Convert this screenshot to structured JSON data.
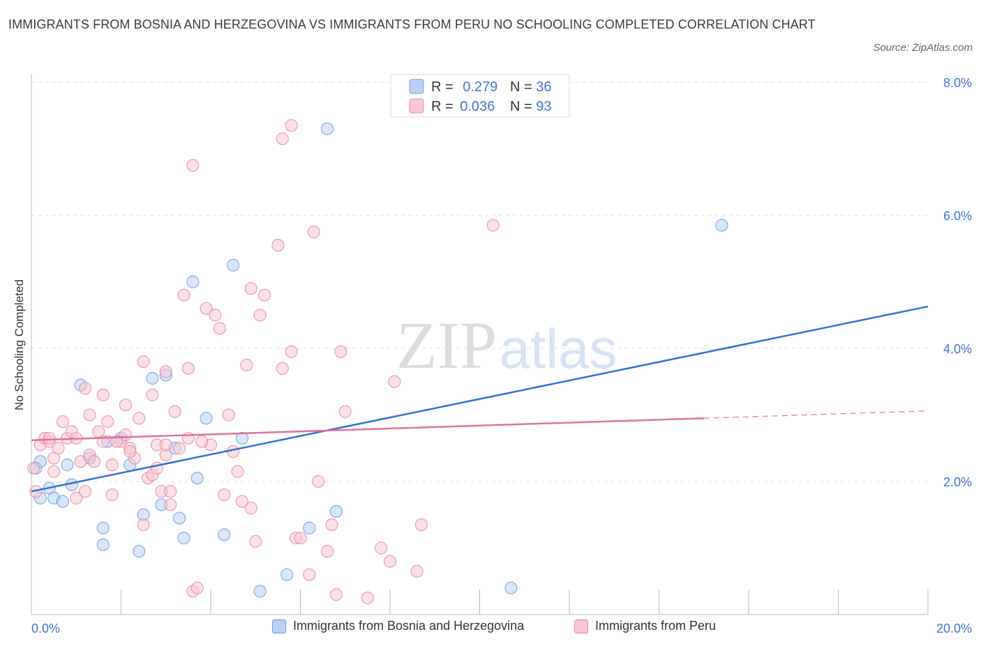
{
  "title": "IMMIGRANTS FROM BOSNIA AND HERZEGOVINA VS IMMIGRANTS FROM PERU NO SCHOOLING COMPLETED CORRELATION CHART",
  "source": "Source: ZipAtlas.com",
  "watermark": {
    "zip": "ZIP",
    "atlas": "atlas"
  },
  "colors": {
    "blue_fill": "#b9d1f5",
    "blue_stroke": "#6f9de0",
    "blue_line": "#2f72d0",
    "pink_fill": "#f8c6d5",
    "pink_stroke": "#e88aa8",
    "pink_line": "#e0709a",
    "accent_text": "#3f75c9"
  },
  "legend": {
    "rows": [
      {
        "r_label": "R = ",
        "r_value": "0.279",
        "n_label": "N = ",
        "n_value": "36"
      },
      {
        "r_label": "R = ",
        "r_value": "0.036",
        "n_label": "N = ",
        "n_value": "93"
      }
    ]
  },
  "bottom_legend": {
    "blue_label": "Immigrants from Bosnia and Herzegovina",
    "pink_label": "Immigrants from Peru"
  },
  "chart_data": {
    "type": "scatter",
    "title": "IMMIGRANTS FROM BOSNIA AND HERZEGOVINA VS IMMIGRANTS FROM PERU NO SCHOOLING COMPLETED CORRELATION CHART",
    "ylabel": "No Schooling Completed",
    "xlabel": "",
    "xlim": [
      0,
      20
    ],
    "ylim": [
      0,
      8
    ],
    "x_tick_labels": [
      "0.0%",
      "20.0%"
    ],
    "y_tick_labels": [
      "2.0%",
      "4.0%",
      "6.0%",
      "8.0%"
    ],
    "y_ticks": [
      2,
      4,
      6,
      8
    ],
    "grid": true,
    "legend_position": "top-center",
    "series": [
      {
        "name": "Immigrants from Bosnia and Herzegovina",
        "color": "#b9d1f5",
        "trend": {
          "x": [
            0,
            20
          ],
          "y": [
            1.85,
            4.63
          ]
        },
        "points": [
          [
            0.1,
            2.2
          ],
          [
            0.2,
            1.75
          ],
          [
            0.4,
            1.9
          ],
          [
            0.5,
            1.75
          ],
          [
            0.7,
            1.7
          ],
          [
            0.8,
            2.25
          ],
          [
            0.9,
            1.95
          ],
          [
            1.1,
            3.45
          ],
          [
            1.3,
            2.35
          ],
          [
            1.6,
            1.3
          ],
          [
            1.6,
            1.05
          ],
          [
            1.7,
            2.6
          ],
          [
            2.0,
            2.65
          ],
          [
            2.2,
            2.25
          ],
          [
            2.4,
            0.95
          ],
          [
            2.5,
            1.5
          ],
          [
            2.7,
            3.55
          ],
          [
            2.9,
            1.65
          ],
          [
            3.0,
            3.6
          ],
          [
            3.2,
            2.5
          ],
          [
            3.3,
            1.45
          ],
          [
            3.4,
            1.15
          ],
          [
            3.6,
            5.0
          ],
          [
            3.7,
            2.05
          ],
          [
            3.9,
            2.95
          ],
          [
            4.3,
            1.2
          ],
          [
            4.5,
            5.25
          ],
          [
            4.7,
            2.65
          ],
          [
            5.1,
            0.35
          ],
          [
            5.7,
            0.6
          ],
          [
            6.2,
            1.3
          ],
          [
            6.6,
            7.3
          ],
          [
            6.8,
            1.55
          ],
          [
            10.7,
            0.4
          ],
          [
            15.4,
            5.85
          ],
          [
            0.2,
            2.3
          ]
        ]
      },
      {
        "name": "Immigrants from Peru",
        "color": "#f8c6d5",
        "trend": {
          "x": [
            0,
            15
          ],
          "y": [
            2.62,
            2.95
          ]
        },
        "trend_dashed": {
          "x": [
            15,
            20
          ],
          "y": [
            2.95,
            3.06
          ]
        },
        "points": [
          [
            0.05,
            2.2
          ],
          [
            0.1,
            1.85
          ],
          [
            0.2,
            2.55
          ],
          [
            0.3,
            2.65
          ],
          [
            0.4,
            2.6
          ],
          [
            0.5,
            2.15
          ],
          [
            0.5,
            2.35
          ],
          [
            0.6,
            2.5
          ],
          [
            0.7,
            2.9
          ],
          [
            0.8,
            2.65
          ],
          [
            0.9,
            2.75
          ],
          [
            1.0,
            1.75
          ],
          [
            1.1,
            2.3
          ],
          [
            1.2,
            1.85
          ],
          [
            1.2,
            3.4
          ],
          [
            1.3,
            3.0
          ],
          [
            1.3,
            2.4
          ],
          [
            1.5,
            2.75
          ],
          [
            1.6,
            2.6
          ],
          [
            1.6,
            3.3
          ],
          [
            1.7,
            2.9
          ],
          [
            1.8,
            2.25
          ],
          [
            1.8,
            1.8
          ],
          [
            2.0,
            2.6
          ],
          [
            2.1,
            2.7
          ],
          [
            2.1,
            3.15
          ],
          [
            2.2,
            2.5
          ],
          [
            2.3,
            2.35
          ],
          [
            2.4,
            2.95
          ],
          [
            2.5,
            3.8
          ],
          [
            2.5,
            1.35
          ],
          [
            2.6,
            2.05
          ],
          [
            2.7,
            2.1
          ],
          [
            2.7,
            3.3
          ],
          [
            2.8,
            2.55
          ],
          [
            2.9,
            1.85
          ],
          [
            3.0,
            2.4
          ],
          [
            3.0,
            3.65
          ],
          [
            3.1,
            1.65
          ],
          [
            3.1,
            1.85
          ],
          [
            3.2,
            3.05
          ],
          [
            3.3,
            2.5
          ],
          [
            3.4,
            4.8
          ],
          [
            3.5,
            3.7
          ],
          [
            3.5,
            2.65
          ],
          [
            3.6,
            0.35
          ],
          [
            3.7,
            0.4
          ],
          [
            3.9,
            4.6
          ],
          [
            4.0,
            2.55
          ],
          [
            4.1,
            4.5
          ],
          [
            4.2,
            4.3
          ],
          [
            4.3,
            1.8
          ],
          [
            4.4,
            3.0
          ],
          [
            4.5,
            2.45
          ],
          [
            4.6,
            2.15
          ],
          [
            4.7,
            1.7
          ],
          [
            4.8,
            3.75
          ],
          [
            4.9,
            1.6
          ],
          [
            4.9,
            4.9
          ],
          [
            5.0,
            1.1
          ],
          [
            5.1,
            4.5
          ],
          [
            5.2,
            4.8
          ],
          [
            5.5,
            5.55
          ],
          [
            5.6,
            3.7
          ],
          [
            5.8,
            3.95
          ],
          [
            5.9,
            1.15
          ],
          [
            6.0,
            1.15
          ],
          [
            6.2,
            0.6
          ],
          [
            6.3,
            5.75
          ],
          [
            6.4,
            2.0
          ],
          [
            6.6,
            0.95
          ],
          [
            6.7,
            1.35
          ],
          [
            6.8,
            0.3
          ],
          [
            6.9,
            3.95
          ],
          [
            7.0,
            3.05
          ],
          [
            7.5,
            0.25
          ],
          [
            7.8,
            1.0
          ],
          [
            8.0,
            0.8
          ],
          [
            8.1,
            3.5
          ],
          [
            8.6,
            0.65
          ],
          [
            8.7,
            1.35
          ],
          [
            10.3,
            5.85
          ],
          [
            3.8,
            2.6
          ],
          [
            5.8,
            7.35
          ],
          [
            5.6,
            7.15
          ],
          [
            3.6,
            6.75
          ],
          [
            1.4,
            2.3
          ],
          [
            2.2,
            2.45
          ],
          [
            1.0,
            2.65
          ],
          [
            3.0,
            2.55
          ],
          [
            0.4,
            2.65
          ],
          [
            1.9,
            2.6
          ],
          [
            2.8,
            2.2
          ]
        ]
      }
    ]
  }
}
